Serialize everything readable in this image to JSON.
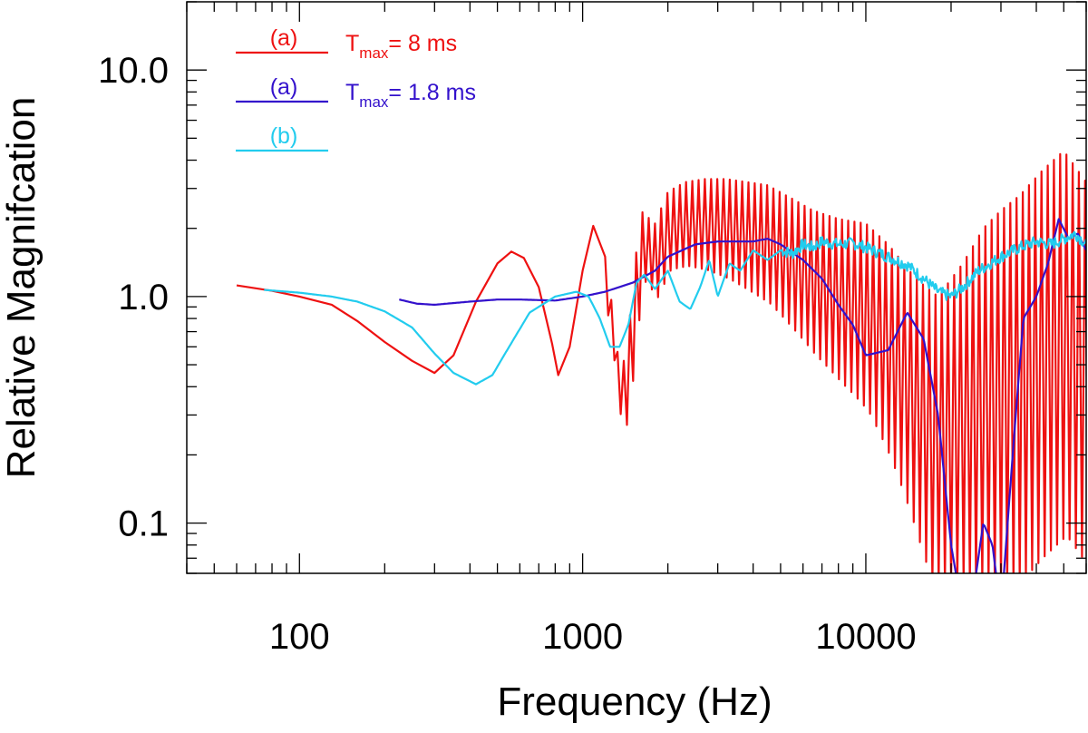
{
  "chart_data": {
    "type": "line",
    "xlabel": "Frequency (Hz)",
    "ylabel": "Relative Magnifcation",
    "xscale": "log",
    "yscale": "log",
    "xlim": [
      40,
      60000
    ],
    "ylim": [
      0.06,
      20
    ],
    "grid": false,
    "legend_position": "top-left",
    "x_ticks": [
      100,
      1000,
      10000
    ],
    "x_tick_labels": [
      "100",
      "1000",
      "10000"
    ],
    "y_ticks": [
      0.1,
      1.0,
      10.0
    ],
    "y_tick_labels": [
      "0.1",
      "1.0",
      "10.0"
    ],
    "legend": [
      {
        "tag": "(a)",
        "color": "#ee1111",
        "label_main": "T",
        "label_sub": "max",
        "label_rest": "= 8 ms"
      },
      {
        "tag": "(a)",
        "color": "#3311cc",
        "label_main": "T",
        "label_sub": "max",
        "label_rest": "= 1.8 ms"
      },
      {
        "tag": "(b)",
        "color": "#22ccee",
        "label_main": "",
        "label_sub": "",
        "label_rest": ""
      }
    ],
    "series": [
      {
        "legend_index": 0,
        "color": "#ee1111",
        "x": [
          60,
          80,
          100,
          130,
          160,
          200,
          250,
          300,
          350,
          420,
          500,
          560,
          620,
          700,
          780,
          820,
          900,
          1000,
          1090,
          1200,
          1300,
          1360,
          1450,
          1600,
          1800,
          2000,
          2300,
          2700,
          3200,
          3800,
          4500,
          5500,
          6500,
          8000,
          10000,
          12000,
          15000,
          18000,
          22000,
          26000,
          30000,
          35000,
          42000,
          50000,
          60000
        ],
        "y": [
          1.12,
          1.06,
          1.0,
          0.92,
          0.78,
          0.63,
          0.52,
          0.46,
          0.55,
          0.95,
          1.4,
          1.58,
          1.48,
          1.1,
          0.62,
          0.45,
          0.6,
          1.3,
          2.05,
          1.5,
          0.75,
          0.42,
          0.7,
          2.4,
          2.1,
          2.9,
          3.2,
          3.3,
          3.3,
          3.2,
          3.1,
          2.7,
          2.4,
          2.2,
          2.1,
          1.7,
          1.2,
          1.0,
          1.4,
          2.0,
          2.4,
          2.8,
          3.6,
          4.4,
          3.2
        ],
        "oscillation": {
          "above_frequency": 1200,
          "period_fraction": 0.052,
          "dip_factor_low": 0.55,
          "dip_factor_high": 0.02
        }
      },
      {
        "legend_index": 1,
        "color": "#3311cc",
        "x": [
          225,
          260,
          300,
          400,
          500,
          600,
          800,
          1000,
          1200,
          1500,
          1800,
          2000,
          2500,
          3000,
          3500,
          4000,
          4500,
          5000,
          6000,
          7000,
          8000,
          9000,
          10000,
          12000,
          14000,
          16000,
          18000,
          20000,
          22000,
          24000,
          26000,
          28000,
          30000,
          33000,
          36000,
          40000,
          44000,
          48000,
          52000,
          56000,
          60000
        ],
        "y": [
          0.97,
          0.93,
          0.92,
          0.95,
          0.97,
          0.97,
          0.96,
          1.0,
          1.05,
          1.15,
          1.3,
          1.5,
          1.7,
          1.75,
          1.75,
          1.75,
          1.8,
          1.7,
          1.45,
          1.2,
          0.92,
          0.75,
          0.55,
          0.58,
          0.85,
          0.65,
          0.3,
          0.08,
          0.04,
          0.05,
          0.1,
          0.08,
          0.04,
          0.2,
          0.8,
          1.0,
          1.4,
          2.2,
          1.8,
          1.9,
          1.6
        ]
      },
      {
        "legend_index": 2,
        "color": "#22ccee",
        "x": [
          75,
          100,
          130,
          160,
          200,
          250,
          300,
          350,
          420,
          480,
          550,
          650,
          800,
          950,
          1050,
          1150,
          1250,
          1350,
          1450,
          1550,
          1650,
          1800,
          2000,
          2200,
          2400,
          2600,
          2800,
          3000,
          3300,
          3600,
          4000,
          4500,
          5000,
          5500,
          6000,
          6500,
          7000,
          8000,
          9000,
          10000,
          12000,
          14000,
          16000,
          18000,
          20000,
          22000,
          25000,
          30000,
          35000,
          40000,
          45000,
          50000,
          55000,
          60000
        ],
        "y": [
          1.07,
          1.04,
          1.0,
          0.95,
          0.86,
          0.73,
          0.56,
          0.46,
          0.41,
          0.45,
          0.6,
          0.85,
          1.0,
          1.05,
          1.0,
          0.8,
          0.6,
          0.6,
          0.75,
          1.15,
          1.25,
          1.08,
          1.3,
          0.95,
          0.88,
          1.1,
          1.45,
          1.0,
          1.4,
          1.3,
          1.6,
          1.45,
          1.6,
          1.55,
          1.7,
          1.65,
          1.75,
          1.7,
          1.72,
          1.65,
          1.5,
          1.38,
          1.2,
          1.05,
          1.0,
          1.1,
          1.3,
          1.5,
          1.65,
          1.75,
          1.7,
          1.8,
          1.9,
          1.7
        ],
        "noise": {
          "above_frequency": 5000,
          "amplitude_fraction": 0.06
        }
      }
    ]
  }
}
